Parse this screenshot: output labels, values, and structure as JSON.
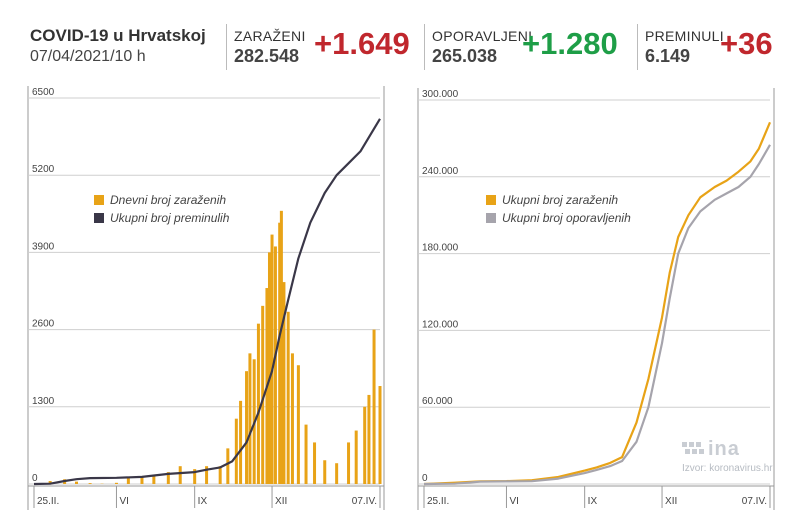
{
  "header": {
    "title": "COVID-19 u Hrvatskoj",
    "subtitle": "07/04/2021/10 h",
    "stats": {
      "infected": {
        "label": "ZARAŽENI",
        "value": "282.548",
        "delta": "+1.649"
      },
      "recovered": {
        "label": "OPORAVLJENI",
        "value": "265.038",
        "delta": "+1.280"
      },
      "deceased": {
        "label": "PREMINULI",
        "value": "6.149",
        "delta": "+36"
      }
    }
  },
  "watermark": {
    "logo": "ina",
    "source": "Izvor: koronavirus.hr"
  },
  "colors": {
    "daily_cases": "#e8a317",
    "total_deaths": "#3a3748",
    "total_infected": "#e8a317",
    "total_recovered": "#a6a4ac",
    "grid": "#cfcfcf",
    "red": "#c0272d",
    "green": "#1e9e47"
  },
  "chart_data": [
    {
      "type": "bar",
      "title": "",
      "ylim": [
        0,
        6500
      ],
      "y_ticks": [
        "0",
        "1300",
        "2600",
        "3900",
        "5200",
        "6500"
      ],
      "x_ticks": [
        "25.II.",
        "VI",
        "IX",
        "XII",
        "07.IV."
      ],
      "grid": true,
      "legend_position": "top-left",
      "series": [
        {
          "name": "Dnevni broj zaraženih",
          "type": "bar",
          "x": [
            "2020-03-15",
            "2020-04-01",
            "2020-04-15",
            "2020-05-01",
            "2020-05-15",
            "2020-06-01",
            "2020-06-15",
            "2020-07-01",
            "2020-07-15",
            "2020-08-01",
            "2020-08-15",
            "2020-09-01",
            "2020-09-15",
            "2020-10-01",
            "2020-10-10",
            "2020-10-20",
            "2020-10-25",
            "2020-11-01",
            "2020-11-05",
            "2020-11-10",
            "2020-11-15",
            "2020-11-20",
            "2020-11-25",
            "2020-11-28",
            "2020-12-01",
            "2020-12-05",
            "2020-12-10",
            "2020-12-12",
            "2020-12-15",
            "2020-12-20",
            "2020-12-25",
            "2021-01-01",
            "2021-01-10",
            "2021-01-20",
            "2021-02-01",
            "2021-02-15",
            "2021-03-01",
            "2021-03-10",
            "2021-03-20",
            "2021-03-25",
            "2021-03-31",
            "2021-04-07"
          ],
          "values": [
            50,
            80,
            40,
            15,
            5,
            20,
            100,
            110,
            150,
            200,
            300,
            250,
            300,
            300,
            600,
            1100,
            1400,
            1900,
            2200,
            2100,
            2700,
            3000,
            3300,
            3900,
            4200,
            4000,
            4400,
            4600,
            3400,
            2900,
            2200,
            2000,
            1000,
            700,
            400,
            350,
            700,
            900,
            1300,
            1500,
            2600,
            1650
          ]
        },
        {
          "name": "Ukupni broj preminulih",
          "type": "line",
          "x": [
            "2020-02-25",
            "2020-03-15",
            "2020-04-01",
            "2020-04-15",
            "2020-05-01",
            "2020-06-01",
            "2020-07-01",
            "2020-08-01",
            "2020-09-01",
            "2020-09-15",
            "2020-10-01",
            "2020-10-15",
            "2020-11-01",
            "2020-11-15",
            "2020-12-01",
            "2020-12-10",
            "2020-12-20",
            "2021-01-01",
            "2021-01-15",
            "2021-02-01",
            "2021-02-15",
            "2021-03-01",
            "2021-03-15",
            "2021-04-07"
          ],
          "values": [
            0,
            5,
            50,
            80,
            100,
            105,
            120,
            170,
            200,
            240,
            280,
            380,
            700,
            1200,
            1900,
            2500,
            3100,
            3800,
            4400,
            4900,
            5200,
            5400,
            5600,
            6149
          ]
        }
      ]
    },
    {
      "type": "line",
      "title": "",
      "ylim": [
        0,
        300000
      ],
      "y_ticks": [
        "0",
        "60.000",
        "120.000",
        "180.000",
        "240.000",
        "300.000"
      ],
      "x_ticks": [
        "25.II.",
        "VI",
        "IX",
        "XII",
        "07.IV."
      ],
      "grid": true,
      "legend_position": "top-left",
      "series": [
        {
          "name": "Ukupni broj zaraženih",
          "x": [
            "2020-02-25",
            "2020-04-01",
            "2020-05-01",
            "2020-06-01",
            "2020-07-01",
            "2020-08-01",
            "2020-09-01",
            "2020-09-15",
            "2020-10-01",
            "2020-10-15",
            "2020-11-01",
            "2020-11-15",
            "2020-12-01",
            "2020-12-10",
            "2020-12-20",
            "2021-01-01",
            "2021-01-15",
            "2021-02-01",
            "2021-02-15",
            "2021-03-01",
            "2021-03-15",
            "2021-03-25",
            "2021-04-07"
          ],
          "values": [
            0,
            1000,
            2100,
            2250,
            3000,
            5500,
            10500,
            13000,
            16500,
            21000,
            48000,
            82000,
            130000,
            165000,
            193000,
            210000,
            224000,
            232000,
            237000,
            244000,
            252000,
            262000,
            282548
          ]
        },
        {
          "name": "Ukupni broj oporavljenih",
          "x": [
            "2020-02-25",
            "2020-04-01",
            "2020-05-01",
            "2020-06-01",
            "2020-07-01",
            "2020-08-01",
            "2020-09-01",
            "2020-09-15",
            "2020-10-01",
            "2020-10-15",
            "2020-11-01",
            "2020-11-15",
            "2020-12-01",
            "2020-12-10",
            "2020-12-20",
            "2021-01-01",
            "2021-01-15",
            "2021-02-01",
            "2021-02-15",
            "2021-03-01",
            "2021-03-15",
            "2021-03-25",
            "2021-04-07"
          ],
          "values": [
            0,
            200,
            1800,
            2050,
            2200,
            4200,
            8500,
            11000,
            14000,
            18000,
            33000,
            60000,
            110000,
            145000,
            180000,
            200000,
            213000,
            222000,
            227000,
            232000,
            240000,
            250000,
            265038
          ]
        }
      ]
    }
  ]
}
